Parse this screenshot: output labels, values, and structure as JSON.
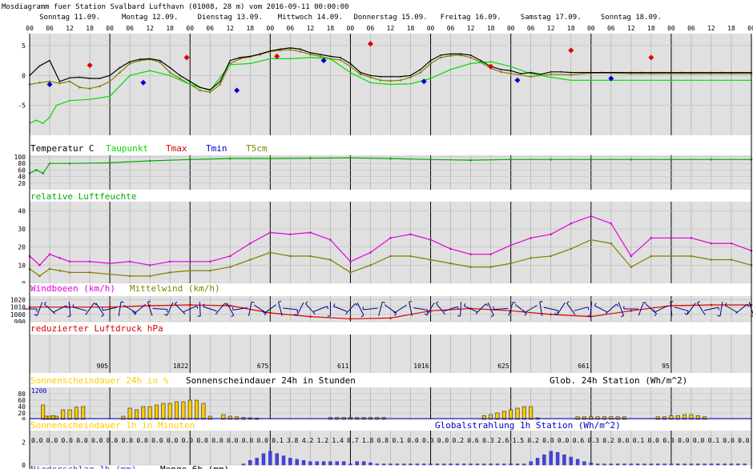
{
  "header": {
    "title": "Mosdiagramm fuer Station Svalbard Lufthavn (01008, 28 m) vom 2016-09-11 00:00:00"
  },
  "days": [
    "Sonntag 11.09.",
    "Montag 12.09.",
    "Dienstag 13.09.",
    "Mittwoch 14.09.",
    "Donnerstag 15.09.",
    "Freitag 16.09.",
    "Samstag 17.09.",
    "Sonntag 18.09."
  ],
  "hour_labels": [
    "00",
    "06",
    "12",
    "18"
  ],
  "colors": {
    "temperature": "#000000",
    "dewpoint": "#00dd00",
    "tmax": "#dd0000",
    "tmin": "#0000cc",
    "t5cm": "#808000",
    "humidity": "#00aa00",
    "gust": "#dd00dd",
    "mean_wind": "#808000",
    "pressure": "#dd0000",
    "wind_barb": "#00008b",
    "sunshine": "#ffcc00",
    "radiation": "#0000cc",
    "precip": "#4444dd",
    "panel_bg": "#e0e0e0"
  },
  "chart_data": [
    {
      "type": "line",
      "panel": "temperature",
      "title": "Temperatur C",
      "yticks": [
        5,
        0,
        -5
      ],
      "ylim": [
        -10,
        7
      ],
      "series": [
        {
          "name": "Temperatur C",
          "x": [
            0,
            3,
            6,
            9,
            12,
            15,
            18,
            21,
            24,
            27,
            30,
            33,
            36,
            39,
            42,
            45,
            48,
            51,
            54,
            57,
            60,
            63,
            66,
            69,
            72,
            75,
            78,
            81,
            84,
            87,
            90,
            93,
            96,
            99,
            102,
            105,
            108,
            111,
            114,
            117,
            120,
            123,
            126,
            129,
            132,
            135,
            138,
            141,
            144,
            147,
            150,
            153,
            156,
            159,
            162,
            165,
            168,
            171,
            174,
            177,
            180,
            183,
            186,
            189,
            192,
            195,
            198,
            201,
            204,
            207,
            210,
            213,
            216
          ],
          "y": [
            0,
            1.6,
            2.5,
            -1,
            -0.4,
            -0.3,
            -0.5,
            -0.5,
            0,
            1.3,
            2.3,
            2.7,
            2.8,
            2.5,
            1.3,
            0,
            -1,
            -2,
            -2.4,
            -1,
            2.5,
            3,
            3.2,
            3.6,
            4.1,
            4.4,
            4.6,
            4.4,
            3.8,
            3.5,
            3.2,
            3,
            2,
            0.5,
            0,
            -0.2,
            -0.2,
            -0.2,
            0,
            1,
            2.5,
            3.4,
            3.6,
            3.6,
            3.4,
            2.5,
            1.5,
            1,
            0.8,
            0.3,
            0.5,
            0.2,
            0.6,
            0.6,
            0.5,
            0.5,
            0.5,
            0.5,
            0.5,
            0.5,
            0.5,
            0.5,
            0.5,
            0.5,
            0.5,
            0.5,
            0.5,
            0.5,
            0.5,
            0.5,
            0.5,
            0.5,
            0.5
          ]
        },
        {
          "name": "Taupunkt",
          "x": [
            0,
            2,
            4,
            6,
            8,
            12,
            18,
            24,
            30,
            36,
            42,
            48,
            54,
            60,
            66,
            72,
            78,
            84,
            90,
            96,
            102,
            108,
            114,
            120,
            126,
            132,
            138,
            144,
            150,
            156,
            162,
            168,
            174,
            180,
            186,
            192,
            198,
            204,
            210,
            216
          ],
          "y": [
            -8,
            -7.5,
            -8,
            -7,
            -5,
            -4.2,
            -4,
            -3.5,
            0,
            0.8,
            0,
            -1.5,
            -2.5,
            1.8,
            2,
            2.8,
            2.8,
            3,
            2.8,
            0.5,
            -1.2,
            -1.5,
            -1.4,
            -0.5,
            1,
            2,
            2.3,
            1.5,
            0.3,
            -0.3,
            -0.8,
            -0.8,
            -0.8,
            -0.8,
            -0.8,
            -0.8,
            -0.8,
            -0.8,
            -0.8,
            -0.8
          ]
        },
        {
          "name": "T5cm",
          "x": [
            0,
            3,
            6,
            9,
            12,
            15,
            18,
            21,
            24,
            27,
            30,
            33,
            36,
            39,
            42,
            45,
            48,
            51,
            54,
            57,
            60,
            63,
            66,
            69,
            72,
            75,
            78,
            81,
            84,
            87,
            90,
            93,
            96,
            99,
            102,
            105,
            108,
            111,
            114,
            117,
            120,
            123,
            126,
            129,
            132,
            135,
            138,
            141,
            144,
            150,
            156,
            162,
            168,
            174,
            180,
            186,
            192,
            198,
            204,
            210,
            216
          ],
          "y": [
            -1.5,
            -1.2,
            -1,
            -1.3,
            -1,
            -2,
            -2.2,
            -1.8,
            -1,
            0.5,
            2,
            2.5,
            2.7,
            2.2,
            0.5,
            -0.5,
            -1.5,
            -2.5,
            -2.8,
            -1.5,
            2,
            2.8,
            3.1,
            3.5,
            4,
            4.2,
            4.3,
            4,
            3.5,
            3.2,
            2.8,
            2.6,
            1.5,
            0.2,
            -0.3,
            -0.8,
            -0.9,
            -0.8,
            -0.3,
            0.5,
            2,
            3,
            3.3,
            3.4,
            3,
            2.2,
            1.2,
            0.6,
            0.3,
            -0.2,
            0.2,
            0.1,
            0.4,
            0.4,
            0.3,
            0.3,
            0.3,
            0.3,
            0.3,
            0.3,
            0.3
          ]
        },
        {
          "name": "Tmax",
          "x": [
            18,
            47,
            74,
            102,
            138,
            162,
            186
          ],
          "y": [
            1.7,
            3,
            3.2,
            5.3,
            1.5,
            4.2,
            3
          ]
        },
        {
          "name": "Tmin",
          "x": [
            6,
            34,
            62,
            88,
            118,
            146,
            174
          ],
          "y": [
            -1.5,
            -1.2,
            -2.5,
            2.5,
            -1,
            -0.8,
            -0.5
          ]
        }
      ]
    },
    {
      "type": "line",
      "panel": "humidity",
      "title": "relative Luftfeuchte",
      "yticks": [
        100,
        80,
        60,
        40,
        20
      ],
      "ylim": [
        0,
        105
      ],
      "series": [
        {
          "name": "relative Luftfeuchte",
          "x": [
            0,
            2,
            4,
            6,
            12,
            24,
            36,
            48,
            60,
            72,
            84,
            96,
            108,
            120,
            132,
            144,
            156,
            168,
            180,
            192,
            204,
            216
          ],
          "y": [
            50,
            60,
            50,
            80,
            80,
            82,
            88,
            92,
            95,
            95,
            96,
            97,
            95,
            92,
            90,
            92,
            92,
            92,
            92,
            92,
            92,
            92
          ]
        }
      ]
    },
    {
      "type": "line",
      "panel": "wind",
      "title": "Windboeen (km/h)",
      "title2": "Mittelwind (km/h)",
      "yticks": [
        40,
        30,
        20,
        10,
        0
      ],
      "ylim": [
        0,
        45
      ],
      "series": [
        {
          "name": "Windboeen (km/h)",
          "x": [
            0,
            3,
            6,
            9,
            12,
            18,
            24,
            30,
            36,
            42,
            48,
            54,
            60,
            66,
            72,
            78,
            84,
            90,
            96,
            102,
            108,
            114,
            120,
            126,
            132,
            138,
            144,
            150,
            156,
            162,
            168,
            174,
            180,
            186,
            192,
            198,
            204,
            210,
            216
          ],
          "y": [
            15,
            10,
            16,
            14,
            12,
            12,
            11,
            12,
            10,
            12,
            12,
            12,
            15,
            22,
            28,
            27,
            28,
            24,
            12,
            17,
            25,
            27,
            24,
            19,
            16,
            16,
            21,
            25,
            27,
            33,
            37,
            33,
            15,
            25,
            25,
            25,
            22,
            22,
            18
          ]
        },
        {
          "name": "Mittelwind (km/h)",
          "x": [
            0,
            3,
            6,
            9,
            12,
            18,
            24,
            30,
            36,
            42,
            48,
            54,
            60,
            66,
            72,
            78,
            84,
            90,
            96,
            102,
            108,
            114,
            120,
            126,
            132,
            138,
            144,
            150,
            156,
            162,
            168,
            174,
            180,
            186,
            192,
            198,
            204,
            210,
            216
          ],
          "y": [
            8,
            4,
            8,
            7,
            6,
            6,
            5,
            4,
            4,
            6,
            7,
            7,
            9,
            13,
            17,
            15,
            15,
            13,
            6,
            10,
            15,
            15,
            13,
            11,
            9,
            9,
            11,
            14,
            15,
            19,
            24,
            22,
            9,
            15,
            15,
            15,
            13,
            13,
            10
          ]
        }
      ]
    },
    {
      "type": "line",
      "panel": "pressure",
      "title": "reduzierter Luftdruck hPa",
      "yticks": [
        1020,
        1010,
        1000,
        990
      ],
      "ylim": [
        990,
        1025
      ],
      "series": [
        {
          "name": "reduzierter Luftdruck hPa",
          "x": [
            0,
            12,
            24,
            36,
            48,
            60,
            72,
            84,
            96,
            108,
            120,
            132,
            144,
            156,
            168,
            180,
            192,
            204,
            216
          ],
          "y": [
            1010,
            1010,
            1010,
            1012,
            1013,
            1012,
            1002,
            997,
            994,
            995,
            1005,
            1008,
            1005,
            1000,
            997,
            1005,
            1012,
            1013,
            1013
          ]
        }
      ]
    },
    {
      "type": "bar",
      "panel": "sunshine24",
      "title": "Sonnenscheindauer 24h in %",
      "title2": "Sonnenscheindauer 24h in Stunden",
      "title3": "Glob. 24h Station (Wh/m^2)",
      "yticks": [
        80,
        60,
        40,
        20,
        0
      ],
      "ylim": [
        0,
        100
      ],
      "radiation_label": "1200",
      "daily_totals": [
        "905",
        "1822",
        "675",
        "611",
        "1016",
        "625",
        "661",
        "95"
      ],
      "x": [
        4,
        5,
        6,
        7,
        8,
        10,
        12,
        14,
        16,
        18,
        28,
        30,
        32,
        34,
        36,
        38,
        40,
        42,
        44,
        46,
        48,
        50,
        52,
        54,
        58,
        60,
        62,
        64,
        66,
        68,
        70,
        72,
        74,
        80,
        82,
        84,
        86,
        88,
        90,
        92,
        94,
        96,
        98,
        100,
        102,
        104,
        106,
        108,
        110,
        112,
        114,
        116,
        118,
        120,
        136,
        138,
        140,
        142,
        144,
        146,
        148,
        150,
        152,
        154,
        156,
        158,
        160,
        162,
        164,
        166,
        168,
        170,
        172,
        174,
        176,
        178,
        180,
        182,
        184,
        186,
        188,
        190,
        192,
        194,
        196,
        198,
        200,
        202,
        204,
        206,
        208,
        210,
        212,
        214,
        216
      ],
      "y": [
        45,
        10,
        10,
        12,
        10,
        30,
        30,
        38,
        40,
        0,
        10,
        35,
        30,
        40,
        40,
        45,
        50,
        50,
        55,
        55,
        60,
        60,
        50,
        10,
        15,
        10,
        8,
        6,
        5,
        4,
        0,
        0,
        0,
        0,
        0,
        0,
        0,
        0,
        6,
        6,
        6,
        6,
        6,
        6,
        6,
        6,
        6,
        0,
        0,
        0,
        0,
        0,
        0,
        0,
        12,
        15,
        20,
        25,
        30,
        35,
        40,
        40,
        5,
        0,
        0,
        0,
        0,
        0,
        8,
        8,
        8,
        8,
        8,
        8,
        8,
        8,
        0,
        0,
        0,
        0,
        8,
        8,
        12,
        12,
        15,
        15,
        12,
        8,
        0,
        0,
        0,
        0,
        0,
        0,
        0
      ]
    },
    {
      "type": "bar",
      "panel": "sunshine1h",
      "title": "Sonnenscheindauer 1h in Minuten",
      "title2": "Globalstrahlung 1h Station (Wh/m^2)",
      "yticks": [
        2,
        0
      ],
      "ylim": [
        0,
        3
      ],
      "six_hour_values": [
        "0.0",
        "0.0",
        "0.0",
        "0.0",
        "0.0",
        "0.0",
        "0.0",
        "0.0",
        "0.0",
        "0.0",
        "0.0",
        "0.0",
        "0.0",
        "0.0",
        "0.0",
        "0.0",
        "0.1",
        "3.8",
        "4.2",
        "1.2",
        "1.4",
        "0.7",
        "1.8",
        "0.8",
        "0.1",
        "0.0",
        "0.0",
        "0.0",
        "0.2",
        "0.6",
        "0.3",
        "2.6",
        "1.5",
        "0.2",
        "0.0",
        "0.0",
        "0.6",
        "0.3",
        "0.2",
        "0.0",
        "0.1",
        "0.0",
        "0.0",
        "0.0",
        "0.0",
        "0.1",
        "0.0",
        "0.0",
        "0.0"
      ],
      "x": [
        64,
        66,
        68,
        70,
        72,
        74,
        76,
        78,
        80,
        82,
        84,
        86,
        88,
        90,
        92,
        94,
        96,
        98,
        100,
        102,
        104,
        106,
        108,
        110,
        112,
        114,
        116,
        118,
        120,
        122,
        124,
        126,
        128,
        130,
        132,
        134,
        136,
        138,
        140,
        142,
        144,
        146,
        148,
        150,
        152,
        154,
        156,
        158,
        160,
        162,
        164,
        166,
        168,
        170,
        172,
        174,
        176,
        178,
        180,
        182,
        184,
        186,
        188,
        190,
        192,
        194,
        196,
        198,
        200,
        202,
        204,
        206,
        208,
        210,
        212,
        214
      ],
      "y": [
        0.1,
        0.4,
        0.6,
        1,
        1.2,
        1,
        0.8,
        0.6,
        0.5,
        0.4,
        0.3,
        0.3,
        0.3,
        0.3,
        0.3,
        0.3,
        0.1,
        0.3,
        0.3,
        0.2,
        0.1,
        0.1,
        0.1,
        0.1,
        0.1,
        0.1,
        0.1,
        0.1,
        0.1,
        0.1,
        0.1,
        0.1,
        0.1,
        0.1,
        0.1,
        0.1,
        0.1,
        0.1,
        0.1,
        0.1,
        0.1,
        0.1,
        0.1,
        0.3,
        0.6,
        0.9,
        1.2,
        1.1,
        0.9,
        0.7,
        0.5,
        0.3,
        0.2,
        0.1,
        0.1,
        0.1,
        0.1,
        0.1,
        0.1,
        0.1,
        0.1,
        0.1,
        0.1,
        0.1,
        0.1,
        0.1,
        0.1,
        0.1,
        0.1,
        0.1,
        0.1,
        0.1,
        0.1,
        0.1,
        0.1,
        0.1
      ]
    },
    {
      "type": "bar",
      "panel": "precip",
      "title": "Niederschlag 1h (mm)",
      "title2": "Menge 6h (mm)"
    }
  ]
}
